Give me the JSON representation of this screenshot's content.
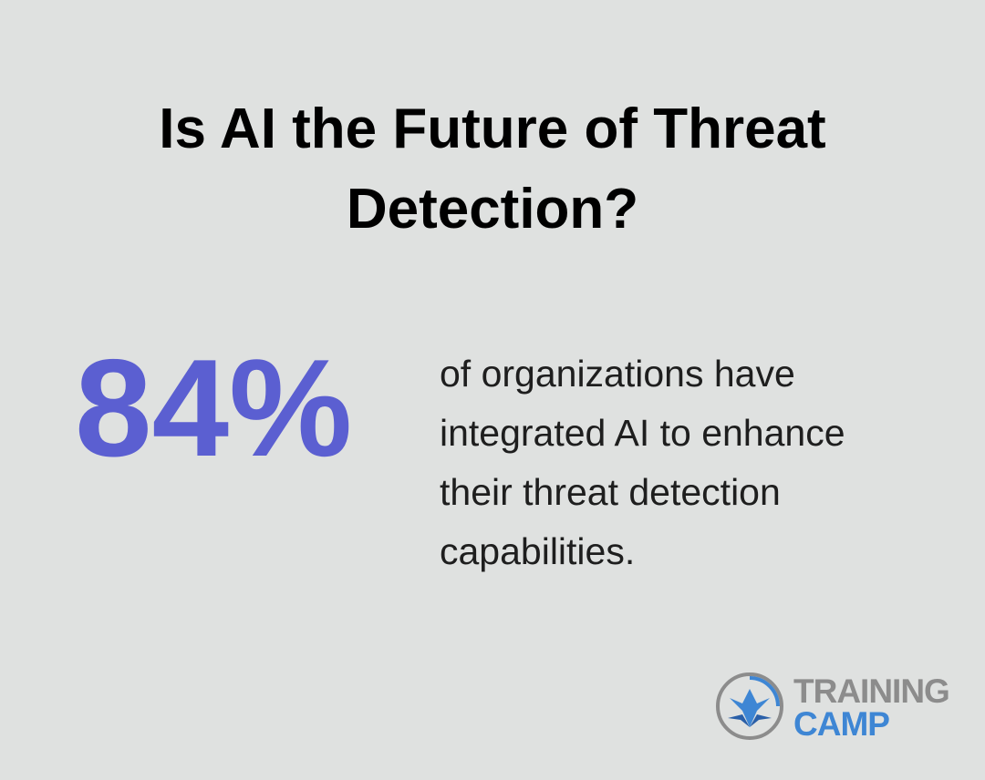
{
  "header": {
    "title": "Is AI the Future of Threat Detection?"
  },
  "stat": {
    "value": "84%",
    "description": "of organizations have integrated AI to enhance their threat detection capabilities."
  },
  "logo": {
    "line1": "TRAINING",
    "line2": "CAMP"
  }
}
